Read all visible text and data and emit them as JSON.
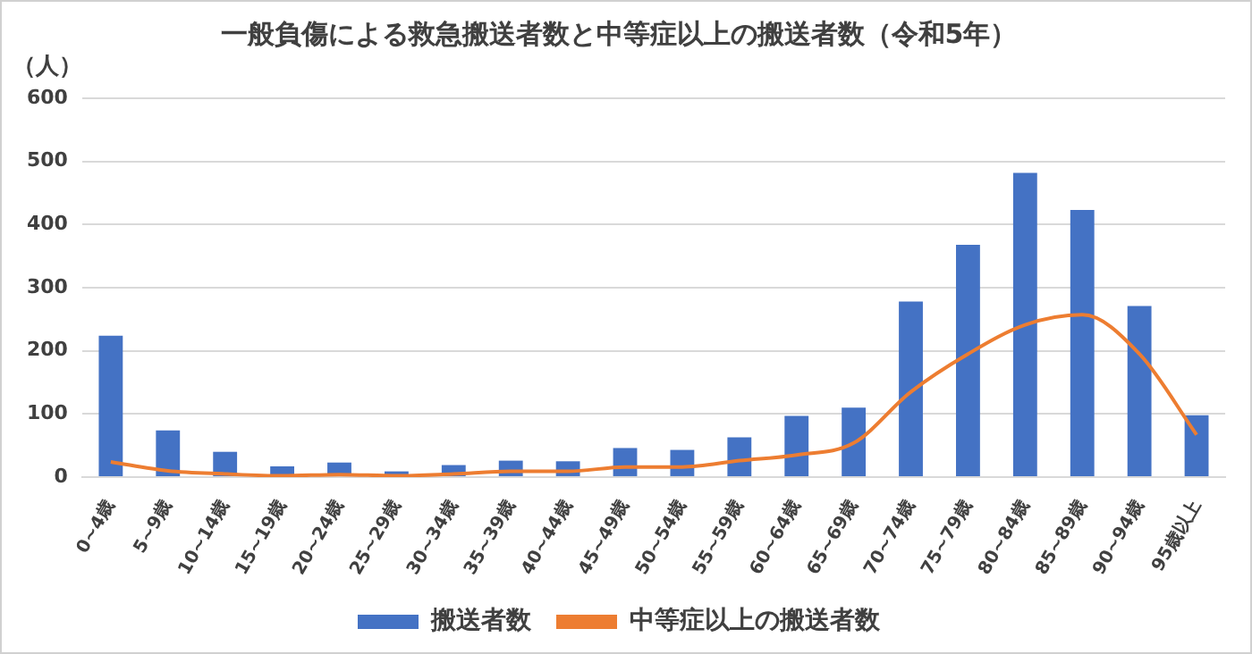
{
  "chart_data": {
    "type": "bar",
    "title": "一般負傷による救急搬送者数と中等症以上の搬送者数（令和5年）",
    "ylabel": "（人）",
    "categories": [
      "0~4歳",
      "5~9歳",
      "10~14歳",
      "15~19歳",
      "20~24歳",
      "25~29歳",
      "30~34歳",
      "35~39歳",
      "40~44歳",
      "45~49歳",
      "50~54歳",
      "55~59歳",
      "60~64歳",
      "65~69歳",
      "70~74歳",
      "75~79歳",
      "80~84歳",
      "85~89歳",
      "90~94歳",
      "95歳以上"
    ],
    "series": [
      {
        "name": "搬送者数",
        "color": "#4472c4",
        "values": [
          224,
          74,
          40,
          17,
          23,
          9,
          19,
          26,
          25,
          46,
          43,
          63,
          97,
          110,
          278,
          368,
          482,
          423,
          271,
          98
        ]
      },
      {
        "name": "中等症以上の搬送者数",
        "type": "line",
        "color": "#ed7d31",
        "values": [
          24,
          10,
          5,
          2,
          4,
          2,
          5,
          9,
          9,
          16,
          16,
          26,
          35,
          54,
          135,
          195,
          241,
          257,
          195,
          67
        ]
      }
    ],
    "ylim": [
      0,
      600
    ],
    "yticks": [
      0,
      100,
      200,
      300,
      400,
      500,
      600
    ],
    "grid": "y",
    "legend": "bottom",
    "marker": "none"
  }
}
